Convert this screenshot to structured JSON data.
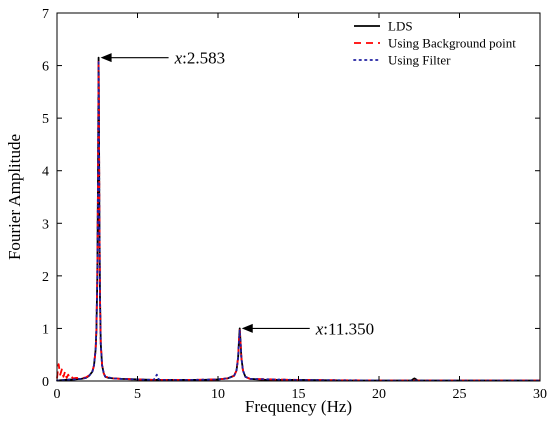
{
  "chart_data": {
    "type": "line",
    "title": "",
    "xlabel": "Frequency (Hz)",
    "ylabel": "Fourier Amplitude",
    "xlim": [
      0,
      30
    ],
    "ylim": [
      0,
      7
    ],
    "xticks": [
      0,
      5,
      10,
      15,
      20,
      25,
      30
    ],
    "yticks": [
      0,
      1,
      2,
      3,
      4,
      5,
      6,
      7
    ],
    "grid": false,
    "legend_position": "top-right",
    "series": [
      {
        "name": "LDS",
        "color": "#000000",
        "style": "solid",
        "x": [
          0,
          0.5,
          1.0,
          1.5,
          1.8,
          2.0,
          2.2,
          2.3,
          2.4,
          2.45,
          2.5,
          2.54,
          2.57,
          2.583,
          2.6,
          2.63,
          2.67,
          2.72,
          2.8,
          2.9,
          3.0,
          3.2,
          3.5,
          4.0,
          5.0,
          6.0,
          7.0,
          8.0,
          9.0,
          10.0,
          10.6,
          11.0,
          11.15,
          11.25,
          11.3,
          11.35,
          11.4,
          11.45,
          11.55,
          11.7,
          12.0,
          13.0,
          15.0,
          18.0,
          20.0,
          22.0,
          22.1,
          22.2,
          22.3,
          22.4,
          25.0,
          28.0,
          30.0
        ],
        "y": [
          0.01,
          0.02,
          0.03,
          0.04,
          0.06,
          0.1,
          0.18,
          0.3,
          0.6,
          1.0,
          1.9,
          3.5,
          5.3,
          6.15,
          5.4,
          3.4,
          1.6,
          0.7,
          0.3,
          0.15,
          0.08,
          0.06,
          0.05,
          0.04,
          0.03,
          0.02,
          0.02,
          0.02,
          0.02,
          0.03,
          0.05,
          0.1,
          0.2,
          0.45,
          0.75,
          1.0,
          0.75,
          0.45,
          0.2,
          0.08,
          0.04,
          0.02,
          0.02,
          0.01,
          0.01,
          0.01,
          0.03,
          0.05,
          0.03,
          0.01,
          0.01,
          0.01,
          0.01
        ]
      },
      {
        "name": "Using Background point",
        "color": "#ff0000",
        "style": "dashed",
        "x": [
          0,
          0.1,
          0.2,
          0.3,
          0.4,
          0.5,
          0.6,
          0.7,
          0.8,
          0.9,
          1.0,
          1.2,
          1.5,
          1.8,
          2.0,
          2.2,
          2.3,
          2.4,
          2.45,
          2.5,
          2.54,
          2.57,
          2.583,
          2.6,
          2.63,
          2.67,
          2.72,
          2.8,
          2.9,
          3.0,
          3.5,
          4.0,
          5.0,
          6.0,
          8.0,
          10.0,
          10.6,
          11.0,
          11.15,
          11.25,
          11.3,
          11.35,
          11.4,
          11.45,
          11.55,
          11.7,
          12.0,
          15.0,
          20.0,
          25.0,
          30.0
        ],
        "y": [
          0.05,
          0.32,
          0.12,
          0.22,
          0.08,
          0.18,
          0.06,
          0.12,
          0.05,
          0.08,
          0.05,
          0.06,
          0.05,
          0.07,
          0.11,
          0.18,
          0.3,
          0.6,
          1.0,
          1.9,
          3.5,
          5.3,
          6.1,
          5.4,
          3.4,
          1.6,
          0.7,
          0.3,
          0.15,
          0.08,
          0.05,
          0.04,
          0.03,
          0.02,
          0.02,
          0.03,
          0.05,
          0.1,
          0.2,
          0.45,
          0.75,
          0.97,
          0.75,
          0.45,
          0.2,
          0.08,
          0.04,
          0.02,
          0.01,
          0.01,
          0.01
        ]
      },
      {
        "name": "Using Filter",
        "color": "#1f1fa0",
        "style": "dotted",
        "x": [
          0,
          0.5,
          1.0,
          1.5,
          1.8,
          2.0,
          2.2,
          2.3,
          2.4,
          2.45,
          2.5,
          2.54,
          2.57,
          2.583,
          2.6,
          2.63,
          2.67,
          2.72,
          2.8,
          2.9,
          3.0,
          3.5,
          4.0,
          5.0,
          6.0,
          6.2,
          6.3,
          6.4,
          7.0,
          8.0,
          10.0,
          10.6,
          11.0,
          11.15,
          11.25,
          11.3,
          11.35,
          11.4,
          11.45,
          11.55,
          11.7,
          12.0,
          15.0,
          20.0,
          25.0,
          30.0
        ],
        "y": [
          0.01,
          0.02,
          0.03,
          0.04,
          0.06,
          0.1,
          0.18,
          0.3,
          0.6,
          1.0,
          1.9,
          3.5,
          5.3,
          6.1,
          5.4,
          3.4,
          1.6,
          0.7,
          0.3,
          0.15,
          0.08,
          0.05,
          0.04,
          0.03,
          0.02,
          0.12,
          0.04,
          0.02,
          0.02,
          0.02,
          0.03,
          0.05,
          0.1,
          0.2,
          0.45,
          0.75,
          0.97,
          0.75,
          0.45,
          0.2,
          0.08,
          0.04,
          0.02,
          0.01,
          0.01,
          0.01
        ]
      }
    ],
    "annotations": [
      {
        "prefix": "x",
        "value": ":2.583",
        "x": 2.583,
        "y": 6.15
      },
      {
        "prefix": "x",
        "value": ":11.350",
        "x": 11.35,
        "y": 1.0
      }
    ]
  }
}
